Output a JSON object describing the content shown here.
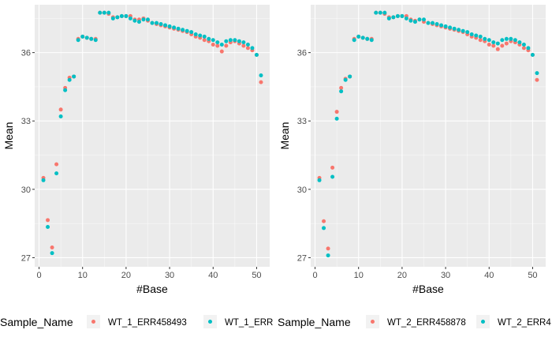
{
  "colors": {
    "panel_bg": "#EBEBEB",
    "grid_major": "#FFFFFF",
    "tick_text": "#4D4D4D",
    "series_1": "#F8766D",
    "series_2": "#00BFC4"
  },
  "chart_data": [
    {
      "type": "scatter",
      "xlabel": "#Base",
      "ylabel": "Mean",
      "xlim": [
        -1,
        53
      ],
      "ylim": [
        26.6,
        38.1
      ],
      "xticks": [
        0,
        10,
        20,
        30,
        40,
        50
      ],
      "yticks": [
        27,
        30,
        33,
        36
      ],
      "grid": true,
      "legend_position": "bottom",
      "legend_title": "Sample_Name",
      "series": [
        {
          "name": "WT_1_ERR458493",
          "color": "#F8766D",
          "x": [
            1,
            2,
            3,
            4,
            5,
            6,
            7,
            8,
            9,
            10,
            11,
            12,
            13,
            14,
            15,
            16,
            17,
            18,
            19,
            20,
            21,
            22,
            23,
            24,
            25,
            26,
            27,
            28,
            29,
            30,
            31,
            32,
            33,
            34,
            35,
            36,
            37,
            38,
            39,
            40,
            41,
            42,
            43,
            44,
            45,
            46,
            47,
            48,
            49,
            50,
            51
          ],
          "y": [
            30.5,
            28.65,
            27.45,
            31.1,
            33.5,
            34.45,
            34.9,
            34.95,
            36.6,
            36.7,
            36.65,
            36.6,
            36.6,
            37.75,
            37.75,
            37.7,
            37.55,
            37.55,
            37.6,
            37.6,
            37.6,
            37.45,
            37.45,
            37.5,
            37.4,
            37.3,
            37.25,
            37.2,
            37.15,
            37.1,
            37.05,
            37.0,
            36.95,
            36.9,
            36.8,
            36.7,
            36.65,
            36.55,
            36.5,
            36.35,
            36.3,
            36.05,
            36.3,
            36.45,
            36.5,
            36.4,
            36.3,
            36.2,
            36.1,
            35.9,
            34.7
          ]
        },
        {
          "name": "WT_1_ERR",
          "color": "#00BFC4",
          "x": [
            1,
            2,
            3,
            4,
            5,
            6,
            7,
            8,
            9,
            10,
            11,
            12,
            13,
            14,
            15,
            16,
            17,
            18,
            19,
            20,
            21,
            22,
            23,
            24,
            25,
            26,
            27,
            28,
            29,
            30,
            31,
            32,
            33,
            34,
            35,
            36,
            37,
            38,
            39,
            40,
            41,
            42,
            43,
            44,
            45,
            46,
            47,
            48,
            49,
            50,
            51
          ],
          "y": [
            30.4,
            28.35,
            27.2,
            30.7,
            33.2,
            34.35,
            34.8,
            34.95,
            36.55,
            36.7,
            36.65,
            36.6,
            36.55,
            37.75,
            37.75,
            37.75,
            37.5,
            37.55,
            37.6,
            37.6,
            37.5,
            37.4,
            37.35,
            37.45,
            37.45,
            37.3,
            37.3,
            37.25,
            37.2,
            37.15,
            37.1,
            37.05,
            37.0,
            36.95,
            36.9,
            36.8,
            36.75,
            36.7,
            36.6,
            36.55,
            36.45,
            36.35,
            36.5,
            36.55,
            36.55,
            36.5,
            36.45,
            36.35,
            36.2,
            35.9,
            35.0
          ]
        }
      ]
    },
    {
      "type": "scatter",
      "xlabel": "#Base",
      "ylabel": "Mean",
      "xlim": [
        -1,
        53
      ],
      "ylim": [
        26.6,
        38.1
      ],
      "xticks": [
        0,
        10,
        20,
        30,
        40,
        50
      ],
      "yticks": [
        27,
        30,
        33,
        36
      ],
      "grid": true,
      "legend_position": "bottom",
      "legend_title": "Sample_Name",
      "series": [
        {
          "name": "WT_2_ERR458878",
          "color": "#F8766D",
          "x": [
            1,
            2,
            3,
            4,
            5,
            6,
            7,
            8,
            9,
            10,
            11,
            12,
            13,
            14,
            15,
            16,
            17,
            18,
            19,
            20,
            21,
            22,
            23,
            24,
            25,
            26,
            27,
            28,
            29,
            30,
            31,
            32,
            33,
            34,
            35,
            36,
            37,
            38,
            39,
            40,
            41,
            42,
            43,
            44,
            45,
            46,
            47,
            48,
            49,
            50,
            51
          ],
          "y": [
            30.5,
            28.6,
            27.4,
            30.95,
            33.4,
            34.45,
            34.85,
            34.95,
            36.6,
            36.7,
            36.65,
            36.6,
            36.6,
            37.75,
            37.75,
            37.7,
            37.55,
            37.55,
            37.6,
            37.6,
            37.6,
            37.45,
            37.4,
            37.45,
            37.35,
            37.3,
            37.25,
            37.2,
            37.15,
            37.1,
            37.05,
            37.0,
            36.95,
            36.9,
            36.8,
            36.7,
            36.65,
            36.55,
            36.5,
            36.35,
            36.3,
            36.15,
            36.3,
            36.4,
            36.5,
            36.45,
            36.35,
            36.2,
            36.1,
            35.9,
            34.8
          ]
        },
        {
          "name": "WT_2_ERR4",
          "color": "#00BFC4",
          "x": [
            1,
            2,
            3,
            4,
            5,
            6,
            7,
            8,
            9,
            10,
            11,
            12,
            13,
            14,
            15,
            16,
            17,
            18,
            19,
            20,
            21,
            22,
            23,
            24,
            25,
            26,
            27,
            28,
            29,
            30,
            31,
            32,
            33,
            34,
            35,
            36,
            37,
            38,
            39,
            40,
            41,
            42,
            43,
            44,
            45,
            46,
            47,
            48,
            49,
            50,
            51
          ],
          "y": [
            30.4,
            28.3,
            27.1,
            30.55,
            33.1,
            34.3,
            34.8,
            34.95,
            36.55,
            36.7,
            36.65,
            36.6,
            36.55,
            37.75,
            37.75,
            37.75,
            37.5,
            37.55,
            37.6,
            37.6,
            37.5,
            37.4,
            37.35,
            37.45,
            37.45,
            37.3,
            37.3,
            37.25,
            37.2,
            37.15,
            37.1,
            37.05,
            37.0,
            36.95,
            36.9,
            36.8,
            36.75,
            36.7,
            36.6,
            36.55,
            36.45,
            36.4,
            36.55,
            36.6,
            36.6,
            36.55,
            36.45,
            36.35,
            36.2,
            35.9,
            35.1
          ]
        }
      ]
    }
  ]
}
